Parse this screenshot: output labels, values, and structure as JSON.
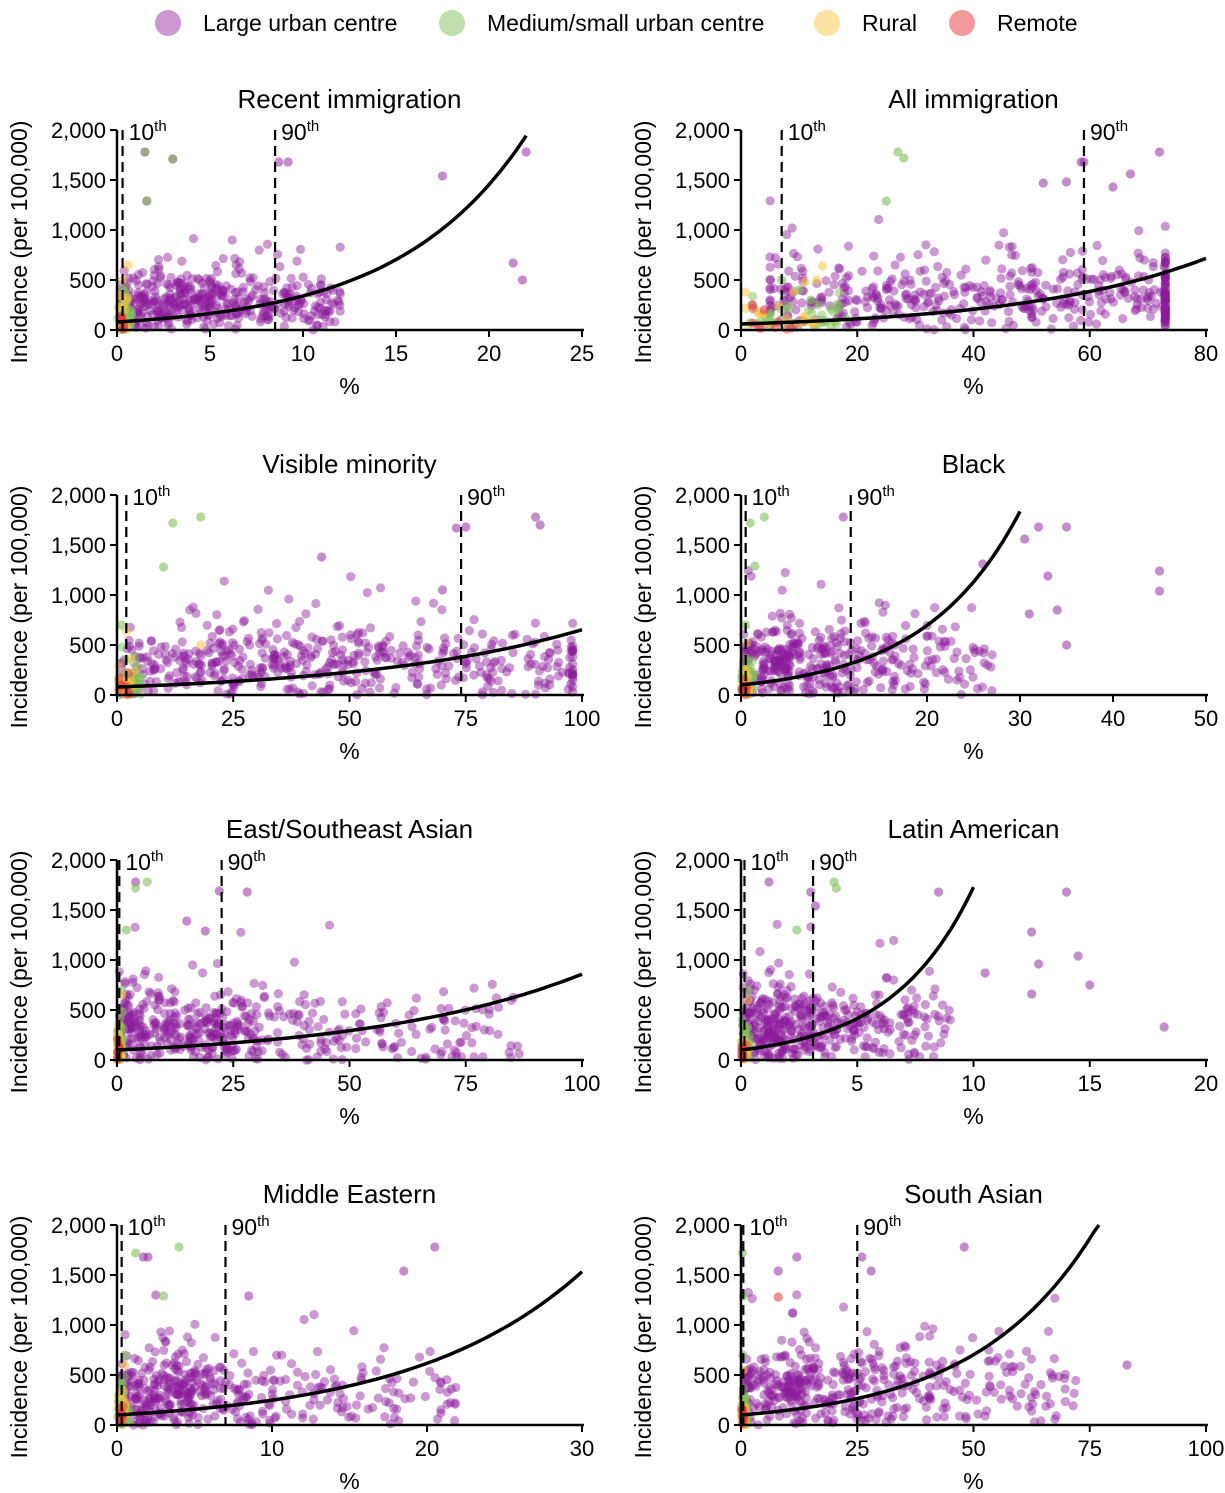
{
  "legend": {
    "items": [
      {
        "label": "Large urban centre",
        "color": "#8b1a9b"
      },
      {
        "label": "Medium/small urban centre",
        "color": "#7fbf5a"
      },
      {
        "label": "Rural",
        "color": "#f5c542"
      },
      {
        "label": "Remote",
        "color": "#e8333a"
      }
    ]
  },
  "chart_data": [
    {
      "type": "scatter",
      "title": "Recent immigration",
      "xlabel": "%",
      "ylabel": "Incidence (per 100,000)",
      "xlim": [
        0,
        25
      ],
      "ylim": [
        0,
        2000
      ],
      "xticks": [
        0,
        5,
        10,
        15,
        20,
        25
      ],
      "yticks": [
        0,
        500,
        1000,
        1500,
        2000
      ],
      "p10": {
        "label": "10",
        "sup": "th",
        "x": 0.3
      },
      "p90": {
        "label": "90",
        "sup": "th",
        "x": 8.5
      },
      "curve": {
        "a": 80,
        "b": 0.145,
        "xmax": 22
      },
      "cloud": {
        "n": 420,
        "xmin": 0.2,
        "xmax": 12,
        "mode": 3,
        "ymean": 280,
        "ysd": 200,
        "outliers": [
          [
            22,
            1780
          ],
          [
            21.3,
            670
          ],
          [
            21.8,
            500
          ],
          [
            17.5,
            1540
          ],
          [
            9.2,
            1680
          ],
          [
            8.7,
            1680
          ],
          [
            1.5,
            1780
          ],
          [
            3,
            1710
          ],
          [
            1.6,
            1290
          ]
        ]
      },
      "green": [
        [
          1.5,
          1780
        ],
        [
          3,
          1710
        ],
        [
          1.6,
          1290
        ]
      ],
      "yellow": [
        [
          0.6,
          650
        ],
        [
          0.3,
          500
        ]
      ],
      "red": [
        [
          0.2,
          120
        ]
      ]
    },
    {
      "type": "scatter",
      "title": "All immigration",
      "xlabel": "%",
      "ylabel": "Incidence (per 100,000)",
      "xlim": [
        0,
        80
      ],
      "ylim": [
        0,
        2000
      ],
      "xticks": [
        0,
        20,
        40,
        60,
        80
      ],
      "yticks": [
        0,
        500,
        1000,
        1500,
        2000
      ],
      "p10": {
        "label": "10",
        "sup": "th",
        "x": 7
      },
      "p90": {
        "label": "90",
        "sup": "th",
        "x": 59
      },
      "curve": {
        "a": 60,
        "b": 0.031,
        "xmax": 80
      },
      "cloud": {
        "n": 460,
        "xmin": 5,
        "xmax": 73,
        "mode": 40,
        "ymean": 330,
        "ysd": 230,
        "outliers": [
          [
            72,
            1780
          ],
          [
            59,
            1680
          ],
          [
            58.5,
            1680
          ],
          [
            67,
            1560
          ],
          [
            52,
            1470
          ],
          [
            56,
            1480
          ],
          [
            64,
            1430
          ]
        ]
      },
      "green": [
        [
          27,
          1780
        ],
        [
          28,
          1720
        ],
        [
          25,
          1290
        ],
        [
          7,
          500
        ],
        [
          10,
          400
        ],
        [
          12,
          300
        ]
      ],
      "yellow": [
        [
          11,
          480
        ],
        [
          14,
          640
        ],
        [
          13,
          500
        ],
        [
          9,
          380
        ]
      ],
      "red": [
        [
          2,
          250
        ],
        [
          4,
          200
        ]
      ]
    },
    {
      "type": "scatter",
      "title": "Visible minority",
      "xlabel": "%",
      "ylabel": "Incidence (per 100,000)",
      "xlim": [
        0,
        100
      ],
      "ylim": [
        0,
        2000
      ],
      "xticks": [
        0,
        25,
        50,
        75,
        100
      ],
      "yticks": [
        0,
        500,
        1000,
        1500,
        2000
      ],
      "p10": {
        "label": "10",
        "sup": "th",
        "x": 2
      },
      "p90": {
        "label": "90",
        "sup": "th",
        "x": 74
      },
      "curve": {
        "a": 80,
        "b": 0.021,
        "xmax": 100
      },
      "cloud": {
        "n": 480,
        "xmin": 1,
        "xmax": 98,
        "mode": 30,
        "ymean": 330,
        "ysd": 230,
        "outliers": [
          [
            90,
            1780
          ],
          [
            91,
            1700
          ],
          [
            75,
            1680
          ],
          [
            73,
            1670
          ],
          [
            44,
            1380
          ],
          [
            70,
            1050
          ]
        ]
      },
      "green": [
        [
          12,
          1720
        ],
        [
          18,
          1780
        ],
        [
          10,
          1280
        ],
        [
          1,
          700
        ]
      ],
      "yellow": [
        [
          2,
          640
        ],
        [
          18,
          500
        ]
      ],
      "red": [
        [
          1,
          100
        ]
      ]
    },
    {
      "type": "scatter",
      "title": "Black",
      "xlabel": "%",
      "ylabel": "Incidence (per 100,000)",
      "xlim": [
        0,
        50
      ],
      "ylim": [
        0,
        2000
      ],
      "xticks": [
        0,
        10,
        20,
        30,
        40,
        50
      ],
      "yticks": [
        0,
        500,
        1000,
        1500,
        2000
      ],
      "p10": {
        "label": "10",
        "sup": "th",
        "x": 0.5
      },
      "p90": {
        "label": "90",
        "sup": "th",
        "x": 11.8
      },
      "curve": {
        "a": 100,
        "b": 0.097,
        "xmax": 30
      },
      "cloud": {
        "n": 380,
        "xmin": 0.3,
        "xmax": 27,
        "mode": 4,
        "ymean": 340,
        "ysd": 230,
        "outliers": [
          [
            11,
            1780
          ],
          [
            45,
            1240
          ],
          [
            45,
            1040
          ],
          [
            30.5,
            1560
          ],
          [
            32,
            1680
          ],
          [
            35,
            1680
          ],
          [
            33,
            1190
          ],
          [
            31,
            810
          ],
          [
            34,
            850
          ],
          [
            35,
            500
          ],
          [
            26,
            1310
          ]
        ]
      },
      "green": [
        [
          1,
          1720
        ],
        [
          2.5,
          1780
        ],
        [
          1.5,
          1290
        ],
        [
          0.5,
          700
        ]
      ],
      "yellow": [
        [
          0.6,
          520
        ]
      ],
      "red": [
        [
          0.3,
          150
        ]
      ]
    },
    {
      "type": "scatter",
      "title": "East/Southeast Asian",
      "xlabel": "%",
      "ylabel": "Incidence (per 100,000)",
      "xlim": [
        0,
        100
      ],
      "ylim": [
        0,
        2000
      ],
      "xticks": [
        0,
        25,
        50,
        75,
        100
      ],
      "yticks": [
        0,
        500,
        1000,
        1500,
        2000
      ],
      "p10": {
        "label": "10",
        "sup": "th",
        "x": 0.5
      },
      "p90": {
        "label": "90",
        "sup": "th",
        "x": 22.5
      },
      "curve": {
        "a": 100,
        "b": 0.0215,
        "xmax": 100
      },
      "cloud": {
        "n": 460,
        "xmin": 0.5,
        "xmax": 88,
        "mode": 8,
        "ymean": 300,
        "ysd": 230,
        "outliers": [
          [
            4,
            1780
          ],
          [
            22,
            1690
          ],
          [
            28,
            1680
          ],
          [
            15,
            1390
          ],
          [
            19,
            1290
          ]
        ]
      },
      "green": [
        [
          4,
          1720
        ],
        [
          6.5,
          1780
        ],
        [
          2,
          1300
        ],
        [
          1,
          700
        ]
      ],
      "yellow": [
        [
          1,
          650
        ]
      ],
      "red": [
        [
          0.5,
          120
        ]
      ]
    },
    {
      "type": "scatter",
      "title": "Latin American",
      "xlabel": "%",
      "ylabel": "Incidence (per 100,000)",
      "xlim": [
        0,
        20
      ],
      "ylim": [
        0,
        2000
      ],
      "xticks": [
        0,
        5,
        10,
        15,
        20
      ],
      "yticks": [
        0,
        500,
        1000,
        1500,
        2000
      ],
      "p10": {
        "label": "10",
        "sup": "th",
        "x": 0.15
      },
      "p90": {
        "label": "90",
        "sup": "th",
        "x": 3.1
      },
      "curve": {
        "a": 100,
        "b": 0.285,
        "xmax": 10
      },
      "cloud": {
        "n": 420,
        "xmin": 0.1,
        "xmax": 9,
        "mode": 1.5,
        "ymean": 360,
        "ysd": 240,
        "outliers": [
          [
            1.2,
            1780
          ],
          [
            3,
            1680
          ],
          [
            3.2,
            1540
          ],
          [
            8.5,
            1680
          ],
          [
            14,
            1680
          ],
          [
            12.5,
            1280
          ],
          [
            18.2,
            330
          ],
          [
            15,
            750
          ],
          [
            12.5,
            660
          ],
          [
            10.5,
            870
          ],
          [
            12.8,
            960
          ],
          [
            14.5,
            1040
          ]
        ]
      },
      "green": [
        [
          4,
          1780
        ],
        [
          4.1,
          1720
        ],
        [
          2.4,
          1300
        ],
        [
          0.3,
          700
        ]
      ],
      "yellow": [
        [
          0.3,
          600
        ]
      ],
      "red": [
        [
          0.2,
          150
        ]
      ]
    },
    {
      "type": "scatter",
      "title": "Middle Eastern",
      "xlabel": "%",
      "ylabel": "Incidence (per 100,000)",
      "xlim": [
        0,
        30
      ],
      "ylim": [
        0,
        2000
      ],
      "xticks": [
        0,
        10,
        20,
        30
      ],
      "yticks": [
        0,
        500,
        1000,
        1500,
        2000
      ],
      "p10": {
        "label": "10",
        "sup": "th",
        "x": 0.3
      },
      "p90": {
        "label": "90",
        "sup": "th",
        "x": 7
      },
      "curve": {
        "a": 100,
        "b": 0.091,
        "xmax": 30
      },
      "cloud": {
        "n": 420,
        "xmin": 0.2,
        "xmax": 22,
        "mode": 2,
        "ymean": 330,
        "ysd": 240,
        "outliers": [
          [
            2,
            1680
          ],
          [
            1.7,
            1680
          ],
          [
            20.5,
            1780
          ],
          [
            18.5,
            1540
          ],
          [
            8.5,
            1290
          ],
          [
            2.5,
            1300
          ]
        ]
      },
      "green": [
        [
          1.2,
          1720
        ],
        [
          4,
          1780
        ],
        [
          3,
          1290
        ],
        [
          0.5,
          700
        ]
      ],
      "yellow": [
        [
          0.5,
          600
        ]
      ],
      "red": [
        [
          0.3,
          120
        ]
      ]
    },
    {
      "type": "scatter",
      "title": "South Asian",
      "xlabel": "%",
      "ylabel": "Incidence (per 100,000)",
      "xlim": [
        0,
        100
      ],
      "ylim": [
        0,
        2000
      ],
      "xticks": [
        0,
        25,
        50,
        75,
        100
      ],
      "yticks": [
        0,
        500,
        1000,
        1500,
        2000
      ],
      "p10": {
        "label": "10",
        "sup": "th",
        "x": 0.5
      },
      "p90": {
        "label": "90",
        "sup": "th",
        "x": 25
      },
      "curve": {
        "a": 100,
        "b": 0.039,
        "xmax": 77
      },
      "cloud": {
        "n": 440,
        "xmin": 0.5,
        "xmax": 72,
        "mode": 10,
        "ymean": 380,
        "ysd": 240,
        "outliers": [
          [
            48,
            1780
          ],
          [
            26,
            1680
          ],
          [
            28,
            1540
          ],
          [
            83,
            600
          ],
          [
            8,
            1540
          ],
          [
            12,
            1680
          ]
        ]
      },
      "green": [
        [
          0.3,
          1720
        ],
        [
          0.5,
          1290
        ],
        [
          0.4,
          700
        ]
      ],
      "yellow": [
        [
          0.5,
          550
        ]
      ],
      "red": [
        [
          8,
          1280
        ],
        [
          0.4,
          150
        ]
      ]
    }
  ]
}
